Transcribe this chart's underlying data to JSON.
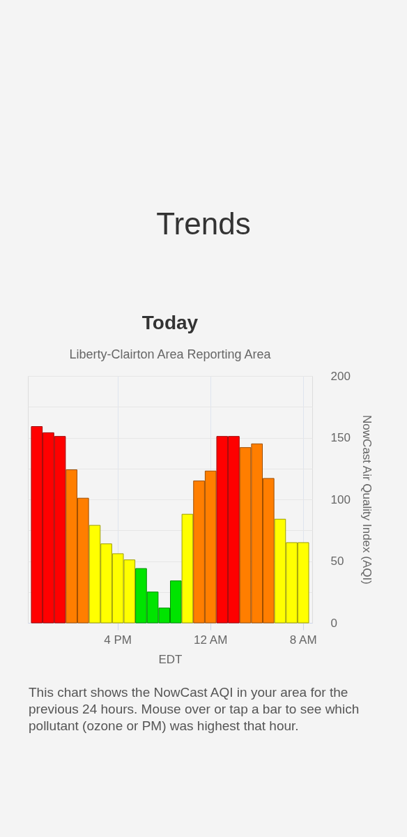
{
  "chart_data": {
    "type": "bar",
    "title": "Today",
    "subtitle": "Liberty-Clairton Area Reporting Area",
    "xlabel": "EDT",
    "ylabel": "NowCast Air Quality Index (AQI)",
    "annotations": [
      "Trends",
      "This chart shows the NowCast AQI in your area for the previous 24 hours. Mouse over or tap a bar to see which pollutant (ozone or PM) was highest that hour."
    ],
    "categories": [
      null,
      null,
      null,
      null,
      null,
      null,
      null,
      "4 PM",
      null,
      null,
      null,
      null,
      null,
      null,
      null,
      "12 AM",
      null,
      null,
      null,
      null,
      null,
      null,
      null,
      "8 AM"
    ],
    "values": [
      159,
      154,
      151,
      124,
      101,
      79,
      64,
      56,
      51,
      44,
      25,
      12,
      34,
      88,
      115,
      123,
      151,
      151,
      142,
      145,
      117,
      84,
      65,
      65
    ],
    "colors": [
      "#ff0000",
      "#ff0000",
      "#ff0000",
      "#ff7e00",
      "#ff7e00",
      "#ffff00",
      "#ffff00",
      "#ffff00",
      "#ffff00",
      "#00e400",
      "#00e400",
      "#00e400",
      "#00e400",
      "#ffff00",
      "#ff7e00",
      "#ff7e00",
      "#ff0000",
      "#ff0000",
      "#ff7e00",
      "#ff7e00",
      "#ff7e00",
      "#ffff00",
      "#ffff00",
      "#ffff00"
    ],
    "ylim": [
      0,
      200
    ],
    "yticks": [
      0,
      {
        "value": 25,
        "label": null
      },
      50,
      {
        "value": 75,
        "label": null
      },
      100,
      {
        "value": 125,
        "label": null
      },
      150,
      {
        "value": 175,
        "label": null
      },
      200
    ],
    "grid": true
  }
}
